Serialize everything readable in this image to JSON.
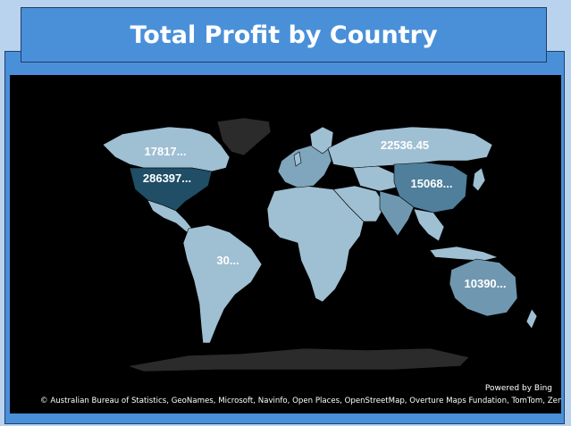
{
  "title": "Total Profit by Country",
  "powered_by": "Powered by Bing",
  "attribution": "© Australian Bureau of Statistics, GeoNames, Microsoft, Navinfo, Open Places, OpenStreetMap, Overture Maps Fundation, TomTom, Zenrin",
  "colors": {
    "background": "#000000",
    "land_default": "#9fbfd3",
    "highlight_dark": "#1f4e66",
    "highlight_mid": "#4f7f9a",
    "no_data": "#2b2b2b"
  },
  "chart_data": {
    "type": "filled-map",
    "title": "Total Profit by Country",
    "series": [
      {
        "region": "United States",
        "label": "286397..."
      },
      {
        "region": "Canada",
        "label": "17817..."
      },
      {
        "region": "Russia",
        "label": "22536.45"
      },
      {
        "region": "China",
        "label": "15068..."
      },
      {
        "region": "Brazil",
        "label": "30..."
      },
      {
        "region": "Australia",
        "label": "10390..."
      }
    ]
  }
}
